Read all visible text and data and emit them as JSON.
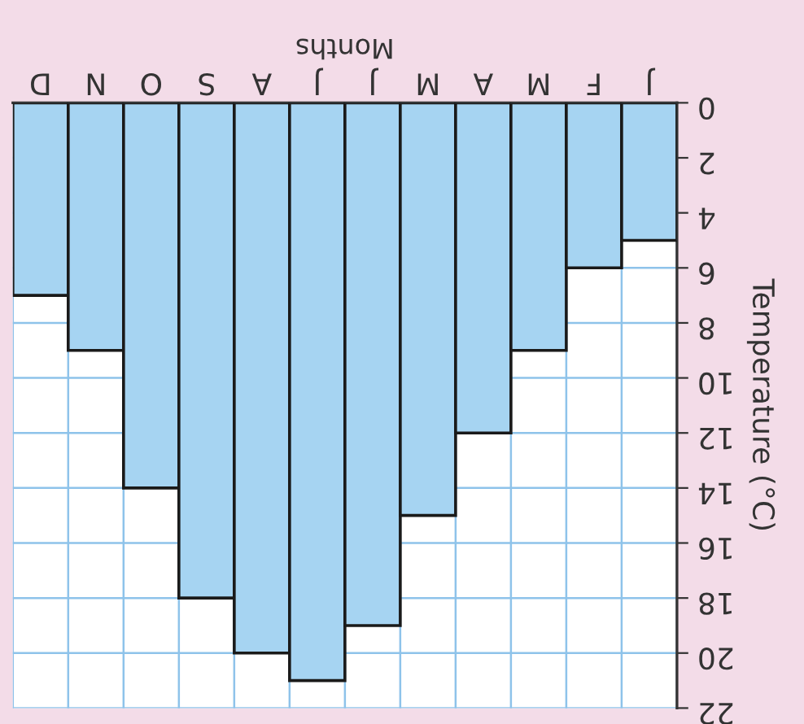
{
  "chart_data": {
    "type": "bar",
    "xlabel": "Months",
    "ylabel": "Temperature (°C)",
    "categories": [
      "D",
      "N",
      "O",
      "S",
      "A",
      "J",
      "J",
      "M",
      "A",
      "M",
      "F",
      "J"
    ],
    "values": [
      7,
      9,
      14,
      18,
      20,
      21,
      19,
      15,
      12,
      9,
      6,
      5
    ],
    "color": "#a6d4f2",
    "ylim": [
      22,
      0
    ],
    "yticks": [
      0,
      2,
      4,
      6,
      8,
      10,
      12,
      14,
      16,
      18,
      20,
      22
    ],
    "grid": true
  }
}
